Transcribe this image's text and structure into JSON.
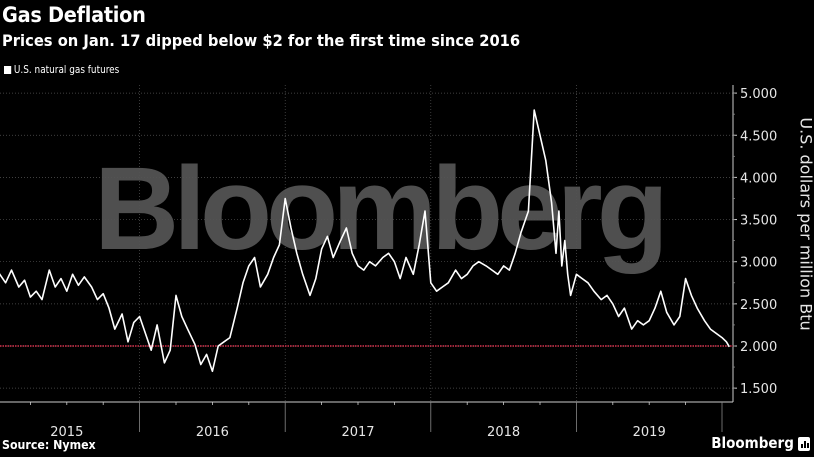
{
  "header": {
    "title": "Gas Deflation",
    "subtitle": "Prices on Jan. 17 dipped below $2 for the first time since 2016"
  },
  "legend": {
    "label": "U.S. natural gas futures",
    "color": "#ffffff"
  },
  "watermark": "Bloomberg",
  "footer": {
    "source": "Source: Nymex",
    "brand": "Bloomberg"
  },
  "colors": {
    "background": "#000000",
    "line": "#ffffff",
    "reference_line": "#d6334d",
    "grid": "#555555"
  },
  "chart_data": {
    "type": "line",
    "title": "Gas Deflation",
    "subtitle": "Prices on Jan. 17 dipped below $2 for the first time since 2016",
    "xlabel": "",
    "ylabel": "U.S. dollars per million Btu",
    "ylim": [
      1.4,
      5.1
    ],
    "yticks": [
      "5.000",
      "4.500",
      "4.000",
      "3.500",
      "3.000",
      "2.500",
      "2.000",
      "1.500"
    ],
    "ytick_values": [
      5.0,
      4.5,
      4.0,
      3.5,
      3.0,
      2.5,
      2.0,
      1.5
    ],
    "xtick_labels": [
      "2015",
      "2016",
      "2017",
      "2018",
      "2019"
    ],
    "grid": true,
    "legend_position": "top-left",
    "reference_line": {
      "value": 2.0,
      "color": "#d6334d",
      "style": "dotted"
    },
    "series": [
      {
        "name": "U.S. natural gas futures",
        "x": [
          2015.0,
          2015.04,
          2015.08,
          2015.12,
          2015.17,
          2015.21,
          2015.25,
          2015.29,
          2015.33,
          2015.38,
          2015.42,
          2015.46,
          2015.5,
          2015.54,
          2015.58,
          2015.62,
          2015.67,
          2015.71,
          2015.75,
          2015.79,
          2015.83,
          2015.88,
          2015.92,
          2015.96,
          2016.0,
          2016.04,
          2016.08,
          2016.12,
          2016.17,
          2016.21,
          2016.25,
          2016.29,
          2016.33,
          2016.38,
          2016.42,
          2016.46,
          2016.5,
          2016.54,
          2016.58,
          2016.62,
          2016.67,
          2016.71,
          2016.75,
          2016.79,
          2016.83,
          2016.88,
          2016.92,
          2016.96,
          2017.0,
          2017.04,
          2017.08,
          2017.12,
          2017.17,
          2017.21,
          2017.25,
          2017.29,
          2017.33,
          2017.38,
          2017.42,
          2017.46,
          2017.5,
          2017.54,
          2017.58,
          2017.62,
          2017.67,
          2017.71,
          2017.75,
          2017.79,
          2017.83,
          2017.88,
          2017.92,
          2017.96,
          2018.0,
          2018.04,
          2018.08,
          2018.12,
          2018.17,
          2018.21,
          2018.25,
          2018.29,
          2018.33,
          2018.38,
          2018.42,
          2018.46,
          2018.5,
          2018.54,
          2018.58,
          2018.62,
          2018.67,
          2018.71,
          2018.75,
          2018.79,
          2018.83,
          2018.86,
          2018.88,
          2018.9,
          2018.92,
          2018.94,
          2018.96,
          2019.0,
          2019.04,
          2019.08,
          2019.12,
          2019.17,
          2019.21,
          2019.25,
          2019.29,
          2019.33,
          2019.38,
          2019.42,
          2019.46,
          2019.5,
          2019.54,
          2019.58,
          2019.62,
          2019.67,
          2019.71,
          2019.75,
          2019.79,
          2019.83,
          2019.88,
          2019.92,
          2019.96,
          2020.0,
          2020.03,
          2020.05
        ],
        "values": [
          2.95,
          2.85,
          2.75,
          2.9,
          2.7,
          2.78,
          2.58,
          2.65,
          2.55,
          2.9,
          2.7,
          2.8,
          2.65,
          2.85,
          2.72,
          2.82,
          2.7,
          2.55,
          2.62,
          2.45,
          2.2,
          2.38,
          2.05,
          2.28,
          2.35,
          2.15,
          1.95,
          2.25,
          1.8,
          1.95,
          2.6,
          2.35,
          2.2,
          2.02,
          1.78,
          1.9,
          1.7,
          2.0,
          2.05,
          2.1,
          2.45,
          2.75,
          2.95,
          3.05,
          2.7,
          2.85,
          3.05,
          3.2,
          3.75,
          3.4,
          3.1,
          2.85,
          2.6,
          2.8,
          3.15,
          3.3,
          3.05,
          3.25,
          3.4,
          3.1,
          2.95,
          2.9,
          3.0,
          2.95,
          3.05,
          3.1,
          3.0,
          2.8,
          3.05,
          2.85,
          3.2,
          3.6,
          2.75,
          2.65,
          2.7,
          2.75,
          2.9,
          2.8,
          2.85,
          2.95,
          3.0,
          2.95,
          2.9,
          2.85,
          2.95,
          2.9,
          3.1,
          3.35,
          3.6,
          4.8,
          4.5,
          4.2,
          3.7,
          3.1,
          3.6,
          2.95,
          3.25,
          2.85,
          2.6,
          2.85,
          2.8,
          2.75,
          2.65,
          2.55,
          2.6,
          2.5,
          2.35,
          2.45,
          2.2,
          2.3,
          2.25,
          2.3,
          2.45,
          2.65,
          2.4,
          2.25,
          2.35,
          2.8,
          2.6,
          2.45,
          2.3,
          2.2,
          2.15,
          2.1,
          2.05,
          1.99
        ]
      }
    ]
  }
}
